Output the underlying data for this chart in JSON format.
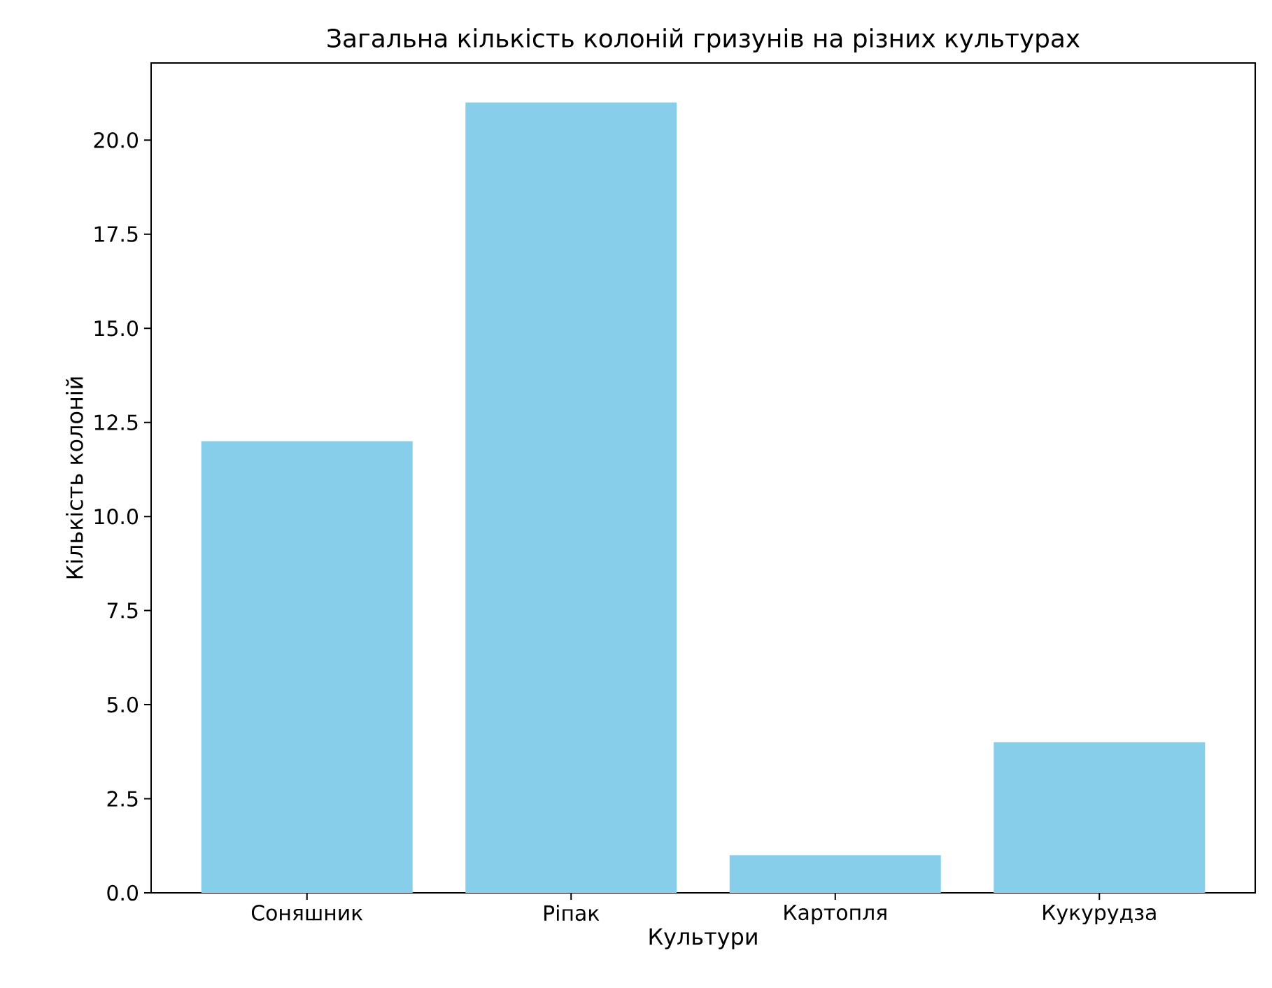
{
  "chart_data": {
    "type": "bar",
    "title": "Загальна кількість колоній гризунів на різних культурах",
    "xlabel": "Культури",
    "ylabel": "Кількість колоній",
    "categories": [
      "Соняшник",
      "Ріпак",
      "Картопля",
      "Кукурудза"
    ],
    "values": [
      12,
      21,
      1,
      4
    ],
    "color": "#87ceeb",
    "ylim": [
      0,
      22.05
    ],
    "yticks": [
      {
        "value": 0,
        "label": "0.0"
      },
      2.5,
      {
        "value": 5,
        "label": "5.0"
      },
      7.5,
      {
        "value": 10,
        "label": "10.0"
      },
      12.5,
      {
        "value": 15,
        "label": "15.0"
      },
      17.5,
      {
        "value": 20,
        "label": "20.0"
      }
    ]
  }
}
